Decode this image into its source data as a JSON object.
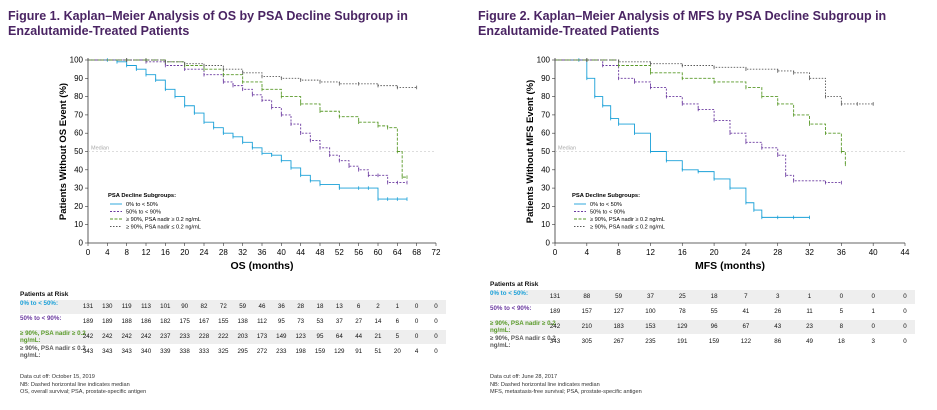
{
  "colors": {
    "blue": "#1aa0d8",
    "purple": "#6b3aa0",
    "green": "#5a9a2a",
    "gray": "#5a5a5a",
    "title": "#4a2463"
  },
  "charts": [
    {
      "title": "Figure 1. Kaplan–Meier Analysis of OS by PSA Decline Subgroup in Enzalutamide-Treated Patients",
      "xlabel": "OS (months)",
      "ylabel": "Patients Without OS Event (%)",
      "xticks": [
        0,
        4,
        8,
        12,
        16,
        20,
        24,
        28,
        32,
        36,
        40,
        44,
        48,
        52,
        56,
        60,
        64,
        68,
        72
      ],
      "xmax": 72,
      "median_label": "Median",
      "legend_title": "PSA Decline Subgroups:",
      "legend": [
        "0% to < 50%",
        "50% to < 90%",
        "≥ 90%, PSA nadir ≥ 0.2 ng/mL",
        "≥ 90%, PSA nadir ≤ 0.2 ng/mL"
      ],
      "risk_title": "Patients at Risk",
      "risk_rows": [
        {
          "label": "0% to < 50%:",
          "values": [
            "131",
            "130",
            "119",
            "113",
            "101",
            "90",
            "82",
            "72",
            "59",
            "46",
            "36",
            "28",
            "18",
            "13",
            "6",
            "2",
            "1",
            "0",
            "0"
          ]
        },
        {
          "label": "50% to < 90%:",
          "values": [
            "189",
            "189",
            "188",
            "186",
            "182",
            "175",
            "167",
            "155",
            "138",
            "112",
            "95",
            "73",
            "53",
            "37",
            "27",
            "14",
            "6",
            "0",
            "0"
          ]
        },
        {
          "label": "≥ 90%, PSA nadir ≥ 0.2 ng/mL:",
          "values": [
            "242",
            "242",
            "242",
            "242",
            "237",
            "233",
            "228",
            "222",
            "203",
            "173",
            "149",
            "123",
            "95",
            "64",
            "44",
            "21",
            "5",
            "0",
            "0"
          ]
        },
        {
          "label": "≥ 90%, PSA nadir ≤ 0.2 ng/mL:",
          "values": [
            "343",
            "343",
            "343",
            "340",
            "339",
            "338",
            "333",
            "325",
            "295",
            "272",
            "233",
            "198",
            "159",
            "129",
            "91",
            "51",
            "20",
            "4",
            "0"
          ]
        }
      ],
      "footnotes": [
        "Data cut off: October 15, 2019",
        "NB: Dashed horizontal line indicates median",
        "OS, overall survival; PSA, prostate-specific antigen"
      ]
    },
    {
      "title": "Figure 2. Kaplan–Meier Analysis of MFS by PSA Decline Subgroup in Enzalutamide-Treated Patients",
      "xlabel": "MFS (months)",
      "ylabel": "Patients Without MFS Event (%)",
      "xticks": [
        0,
        4,
        8,
        12,
        16,
        20,
        24,
        28,
        32,
        36,
        40,
        44
      ],
      "xmax": 44,
      "median_label": "Median",
      "legend_title": "PSA Decline Subgroups:",
      "legend": [
        "0% to < 50%",
        "50% to < 90%",
        "≥ 90%, PSA nadir ≥ 0.2 ng/mL",
        "≥ 90%, PSA nadir ≤ 0.2 ng/mL"
      ],
      "risk_title": "Patients at Risk",
      "risk_rows": [
        {
          "label": "0% to < 50%:",
          "values": [
            "131",
            "88",
            "59",
            "37",
            "25",
            "18",
            "7",
            "3",
            "1",
            "0",
            "0",
            "0"
          ]
        },
        {
          "label": "50% to < 90%:",
          "values": [
            "189",
            "157",
            "127",
            "100",
            "78",
            "55",
            "41",
            "26",
            "11",
            "5",
            "1",
            "0"
          ]
        },
        {
          "label": "≥ 90%, PSA nadir ≥ 0.2 ng/mL:",
          "values": [
            "242",
            "210",
            "183",
            "153",
            "129",
            "96",
            "67",
            "43",
            "23",
            "8",
            "0",
            "0"
          ]
        },
        {
          "label": "≥ 90%, PSA nadir ≤ 0.2 ng/mL:",
          "values": [
            "343",
            "305",
            "267",
            "235",
            "191",
            "159",
            "122",
            "86",
            "49",
            "18",
            "3",
            "0"
          ]
        }
      ],
      "footnotes": [
        "Data cut off: June 28, 2017",
        "NB: Dashed horizontal line indicates median",
        "MFS, metastasis-free survival; PSA, prostate-specific antigen"
      ]
    }
  ],
  "chart_data": [
    {
      "type": "line",
      "title": "Figure 1. Kaplan–Meier Analysis of OS by PSA Decline Subgroup in Enzalutamide-Treated Patients",
      "xlabel": "OS (months)",
      "ylabel": "Patients Without OS Event (%)",
      "xlim": [
        0,
        72
      ],
      "ylim": [
        0,
        100
      ],
      "legend_position": "lower-left",
      "series": [
        {
          "name": "0% to < 50%",
          "color": "#1aa0d8",
          "x": [
            0,
            4,
            6,
            8,
            10,
            12,
            14,
            16,
            18,
            20,
            22,
            24,
            26,
            28,
            30,
            32,
            34,
            36,
            38,
            40,
            42,
            44,
            46,
            48,
            52,
            56,
            58,
            60,
            62,
            64,
            66
          ],
          "y": [
            100,
            100,
            99,
            97,
            95,
            92,
            89,
            84,
            80,
            75,
            71,
            66,
            63,
            60,
            58,
            55,
            52,
            49,
            48,
            45,
            41,
            37,
            34,
            32,
            30,
            30,
            30,
            24,
            24,
            24,
            24
          ]
        },
        {
          "name": "50% to < 90%",
          "color": "#6b3aa0",
          "x": [
            0,
            8,
            12,
            16,
            20,
            24,
            28,
            30,
            32,
            34,
            36,
            38,
            40,
            42,
            44,
            46,
            48,
            50,
            52,
            54,
            56,
            58,
            60,
            62,
            64,
            66
          ],
          "y": [
            100,
            100,
            99,
            97,
            95,
            92,
            88,
            86,
            84,
            81,
            78,
            74,
            70,
            65,
            60,
            56,
            52,
            48,
            45,
            42,
            40,
            37,
            37,
            33,
            33,
            33
          ]
        },
        {
          "name": "≥ 90%, PSA nadir ≥ 0.2 ng/mL",
          "color": "#5a9a2a",
          "x": [
            0,
            8,
            12,
            16,
            20,
            24,
            28,
            32,
            36,
            40,
            44,
            48,
            52,
            56,
            60,
            62,
            64,
            65,
            66
          ],
          "y": [
            100,
            100,
            100,
            99,
            97,
            95,
            92,
            88,
            84,
            80,
            76,
            72,
            69,
            66,
            64,
            63,
            50,
            36,
            36
          ]
        },
        {
          "name": "≥ 90%, PSA nadir ≤ 0.2 ng/mL",
          "color": "#5a5a5a",
          "x": [
            0,
            8,
            12,
            16,
            20,
            24,
            28,
            32,
            36,
            40,
            44,
            48,
            52,
            56,
            60,
            64,
            68
          ],
          "y": [
            100,
            100,
            100,
            99,
            98,
            97,
            95,
            93,
            91,
            90,
            89,
            88,
            87,
            87,
            86,
            85,
            85
          ]
        }
      ]
    },
    {
      "type": "line",
      "title": "Figure 2. Kaplan–Meier Analysis of MFS by PSA Decline Subgroup in Enzalutamide-Treated Patients",
      "xlabel": "MFS (months)",
      "ylabel": "Patients Without MFS Event (%)",
      "xlim": [
        0,
        44
      ],
      "ylim": [
        0,
        100
      ],
      "legend_position": "lower-left",
      "series": [
        {
          "name": "0% to < 50%",
          "color": "#1aa0d8",
          "x": [
            0,
            3,
            4,
            5,
            6,
            7,
            8,
            10,
            12,
            14,
            16,
            18,
            20,
            22,
            24,
            25,
            26,
            28,
            30,
            32
          ],
          "y": [
            100,
            100,
            90,
            80,
            75,
            68,
            65,
            60,
            50,
            45,
            40,
            39,
            35,
            30,
            22,
            18,
            14,
            14,
            14,
            14
          ]
        },
        {
          "name": "50% to < 90%",
          "color": "#6b3aa0",
          "x": [
            0,
            4,
            6,
            8,
            10,
            12,
            14,
            16,
            18,
            20,
            22,
            24,
            26,
            28,
            29,
            30,
            34,
            36
          ],
          "y": [
            100,
            100,
            97,
            90,
            88,
            85,
            80,
            76,
            73,
            67,
            60,
            55,
            52,
            48,
            37,
            34,
            33,
            33
          ]
        },
        {
          "name": "≥ 90%, PSA nadir ≥ 0.2 ng/mL",
          "color": "#5a9a2a",
          "x": [
            0,
            4,
            8,
            12,
            16,
            20,
            24,
            26,
            28,
            30,
            32,
            34,
            36,
            36.5
          ],
          "y": [
            100,
            100,
            97,
            93,
            90,
            88,
            85,
            80,
            76,
            70,
            65,
            60,
            50,
            43
          ]
        },
        {
          "name": "≥ 90%, PSA nadir ≤ 0.2 ng/mL",
          "color": "#5a5a5a",
          "x": [
            0,
            4,
            8,
            12,
            16,
            20,
            24,
            28,
            30,
            32,
            34,
            36,
            38,
            40
          ],
          "y": [
            100,
            100,
            99,
            98,
            97,
            96,
            95,
            94,
            93,
            90,
            80,
            76,
            76,
            76
          ]
        }
      ]
    }
  ]
}
